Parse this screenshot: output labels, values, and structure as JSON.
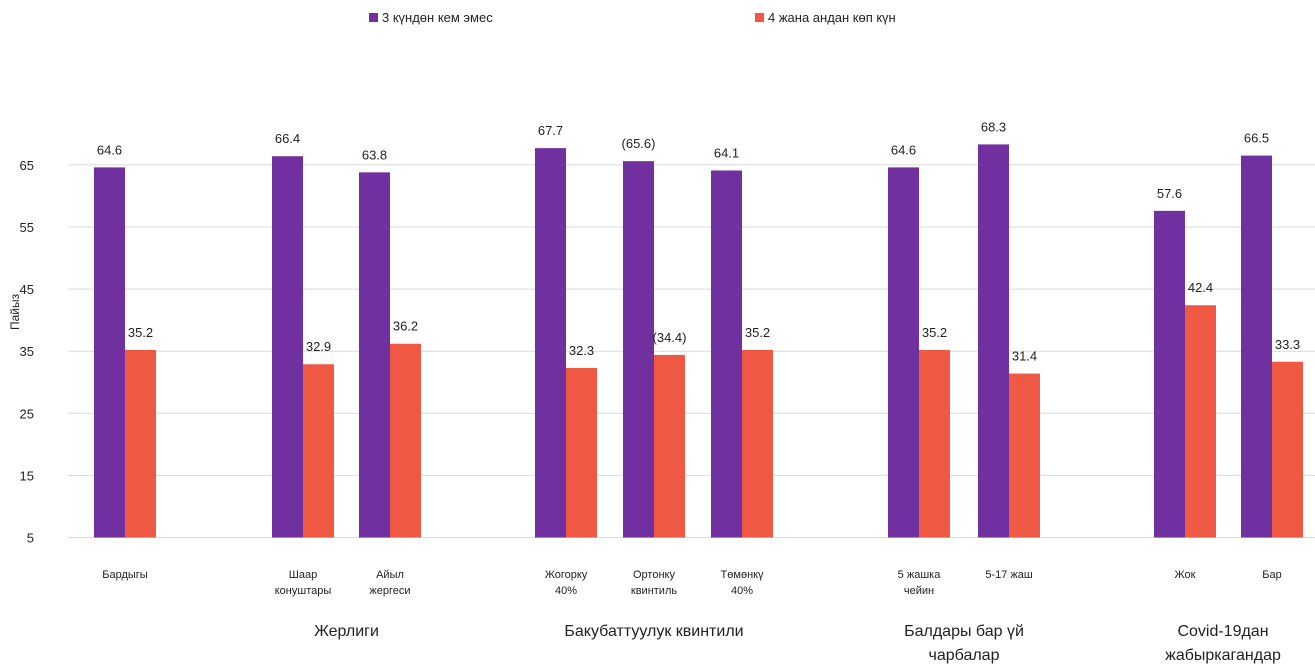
{
  "chart_data": {
    "type": "bar",
    "ylabel": "Пайыз",
    "yticks": [
      5,
      15,
      25,
      35,
      45,
      55,
      65
    ],
    "ylim": [
      5,
      70
    ],
    "grid": true,
    "legend_position": "top",
    "series": [
      {
        "name": "3 күндөн кем эмес",
        "color": "#7030a0"
      },
      {
        "name": "4 жана андан  көп күн",
        "color": "#ef5943"
      }
    ],
    "categories": [
      {
        "label_lines": [
          "Бардыгы"
        ],
        "values": [
          64.6,
          35.2
        ],
        "value_labels": [
          "64.6",
          "35.2"
        ]
      },
      {
        "label_lines": [
          "Шаар",
          "конуштары"
        ],
        "values": [
          66.4,
          32.9
        ],
        "value_labels": [
          "66.4",
          "32.9"
        ]
      },
      {
        "label_lines": [
          "Айыл",
          "жергеси"
        ],
        "values": [
          63.8,
          36.2
        ],
        "value_labels": [
          "63.8",
          "36.2"
        ]
      },
      {
        "label_lines": [
          "Жогорку",
          "40%"
        ],
        "values": [
          67.7,
          32.3
        ],
        "value_labels": [
          "67.7",
          "32.3"
        ]
      },
      {
        "label_lines": [
          "Ортонку",
          "квинтиль"
        ],
        "values": [
          65.6,
          34.4
        ],
        "value_labels": [
          "(65.6)",
          "(34.4)"
        ]
      },
      {
        "label_lines": [
          "Төмөнкү",
          "40%"
        ],
        "values": [
          64.1,
          35.2
        ],
        "value_labels": [
          "64.1",
          "35.2"
        ]
      },
      {
        "label_lines": [
          "5 жашка",
          "чейин"
        ],
        "values": [
          64.6,
          35.2
        ],
        "value_labels": [
          "64.6",
          "35.2"
        ]
      },
      {
        "label_lines": [
          "5-17 жаш"
        ],
        "values": [
          68.3,
          31.4
        ],
        "value_labels": [
          "68.3",
          "31.4"
        ]
      },
      {
        "label_lines": [
          "Жок"
        ],
        "values": [
          57.6,
          42.4
        ],
        "value_labels": [
          "57.6",
          "42.4"
        ]
      },
      {
        "label_lines": [
          "Бар"
        ],
        "values": [
          66.5,
          33.3
        ],
        "value_labels": [
          "66.5",
          "33.3"
        ]
      }
    ],
    "group_labels": [
      {
        "label_lines": [
          "Жерлиги"
        ],
        "categories": [
          1,
          2
        ]
      },
      {
        "label_lines": [
          "Бакубаттуулук квинтили"
        ],
        "categories": [
          3,
          4,
          5
        ]
      },
      {
        "label_lines": [
          "Балдары бар үй",
          "чарбалар"
        ],
        "categories": [
          6,
          7
        ]
      },
      {
        "label_lines": [
          "Covid-19дан",
          "жабыркагандар"
        ],
        "categories": [
          8,
          9
        ]
      }
    ]
  }
}
